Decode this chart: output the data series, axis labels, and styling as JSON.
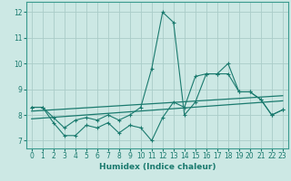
{
  "xlabel": "Humidex (Indice chaleur)",
  "xlim": [
    -0.5,
    23.5
  ],
  "ylim": [
    6.7,
    12.4
  ],
  "yticks": [
    7,
    8,
    9,
    10,
    11,
    12
  ],
  "xticks": [
    0,
    1,
    2,
    3,
    4,
    5,
    6,
    7,
    8,
    9,
    10,
    11,
    12,
    13,
    14,
    15,
    16,
    17,
    18,
    19,
    20,
    21,
    22,
    23
  ],
  "bg_color": "#cce8e4",
  "grid_color": "#aaccc8",
  "line_color": "#1a7a6e",
  "series_lower_x": [
    0,
    1,
    2,
    3,
    4,
    5,
    6,
    7,
    8,
    9,
    10,
    11,
    12,
    13,
    14,
    15,
    16,
    17,
    18,
    19,
    20,
    21,
    22,
    23
  ],
  "series_lower_y": [
    8.3,
    8.3,
    7.7,
    7.2,
    7.2,
    7.6,
    7.5,
    7.7,
    7.3,
    7.6,
    7.5,
    7.0,
    7.9,
    8.5,
    8.3,
    9.5,
    9.6,
    9.6,
    10.0,
    8.9,
    8.9,
    8.6,
    8.0,
    8.2
  ],
  "series_upper_x": [
    0,
    1,
    2,
    3,
    4,
    5,
    6,
    7,
    8,
    9,
    10,
    11,
    12,
    13,
    14,
    15,
    16,
    17,
    18,
    19,
    20,
    21,
    22,
    23
  ],
  "series_upper_y": [
    8.3,
    8.3,
    7.9,
    7.5,
    7.8,
    7.9,
    7.8,
    8.0,
    7.8,
    8.0,
    8.3,
    9.8,
    12.0,
    11.6,
    8.0,
    8.5,
    9.6,
    9.6,
    9.6,
    8.9,
    8.9,
    8.6,
    8.0,
    8.2
  ],
  "trend1_x": [
    0,
    23
  ],
  "trend1_y": [
    8.15,
    8.75
  ],
  "trend2_x": [
    0,
    23
  ],
  "trend2_y": [
    7.85,
    8.55
  ]
}
